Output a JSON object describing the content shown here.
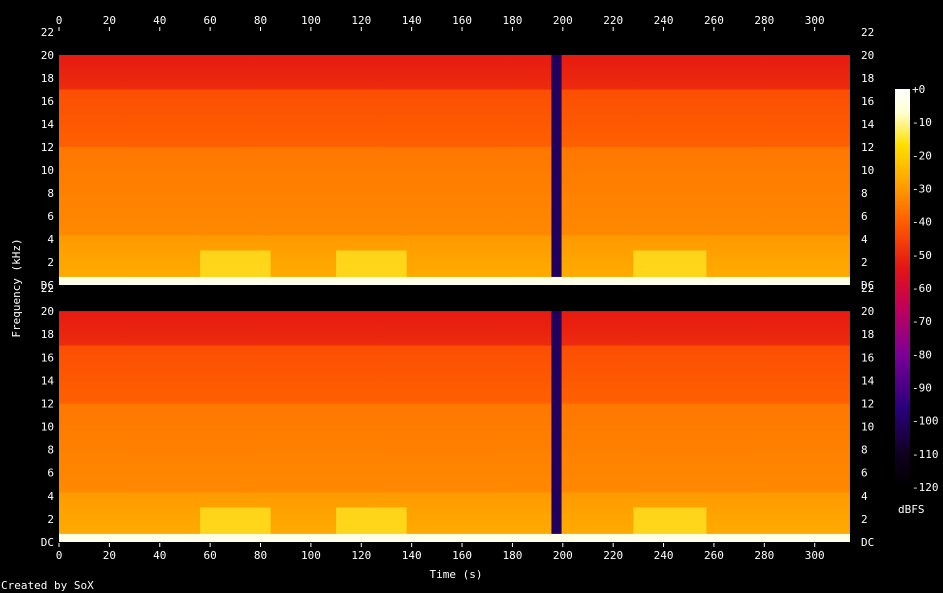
{
  "chart_data": {
    "type": "heatmap",
    "xlabel": "Time (s)",
    "ylabel": "Frequency (kHz)",
    "colorbar_label": "dBFS",
    "credit": "Created by SoX",
    "xlim": [
      0,
      316
    ],
    "ylim_khz": [
      0,
      22
    ],
    "x_ticks": [
      "0",
      "20",
      "40",
      "60",
      "80",
      "100",
      "120",
      "140",
      "160",
      "180",
      "200",
      "220",
      "240",
      "260",
      "280",
      "300"
    ],
    "x_tick_values": [
      0,
      20,
      40,
      60,
      80,
      100,
      120,
      140,
      160,
      180,
      200,
      220,
      240,
      260,
      280,
      300
    ],
    "y_ticks_top": [
      "DC",
      "2",
      "4",
      "6",
      "8",
      "10",
      "12",
      "14",
      "16",
      "18",
      "20",
      "22"
    ],
    "y_ticks_lower_channel": [
      "2",
      "4",
      "6",
      "8",
      "10",
      "12",
      "14",
      "16",
      "18",
      "20",
      "22"
    ],
    "y_tick_values": [
      0,
      2,
      4,
      6,
      8,
      10,
      12,
      14,
      16,
      18,
      20,
      22
    ],
    "colorbar_ticks": [
      "+0",
      "-10",
      "-20",
      "-30",
      "-40",
      "-50",
      "-60",
      "-70",
      "-80",
      "-90",
      "-100",
      "-110",
      "-120"
    ],
    "colorbar_values": [
      0,
      -10,
      -20,
      -30,
      -40,
      -50,
      -60,
      -70,
      -80,
      -90,
      -100,
      -110,
      -120
    ],
    "channels": 2,
    "content_end_s": 314,
    "gap_s": [
      195.5,
      199.5
    ],
    "lowpass_cutoff_khz": 20,
    "band_levels_dbfs": [
      {
        "freq_range_khz": [
          0,
          0.7
        ],
        "level": -10
      },
      {
        "freq_range_khz": [
          0.7,
          4.3
        ],
        "level": -34
      },
      {
        "freq_range_khz": [
          4.3,
          12
        ],
        "level": -40
      },
      {
        "freq_range_khz": [
          12,
          17
        ],
        "level": -47
      },
      {
        "freq_range_khz": [
          17,
          20
        ],
        "level": -56
      }
    ],
    "bright_segments": [
      {
        "time_s": [
          56,
          84
        ],
        "freq_khz": [
          0.7,
          3
        ]
      },
      {
        "time_s": [
          110,
          138
        ],
        "freq_khz": [
          0.7,
          3
        ]
      },
      {
        "time_s": [
          228,
          257
        ],
        "freq_khz": [
          0.7,
          3
        ]
      }
    ],
    "grid": false,
    "colormap": "sox-fire",
    "colors": {
      "background": "#000000",
      "text": "#ffffff",
      "colormap_stops": [
        "#000000",
        "#10001e",
        "#2a007d",
        "#7a0096",
        "#c0005a",
        "#e41414",
        "#ff5a00",
        "#ffa000",
        "#ffe000",
        "#ffffd0",
        "#ffffff"
      ]
    }
  }
}
